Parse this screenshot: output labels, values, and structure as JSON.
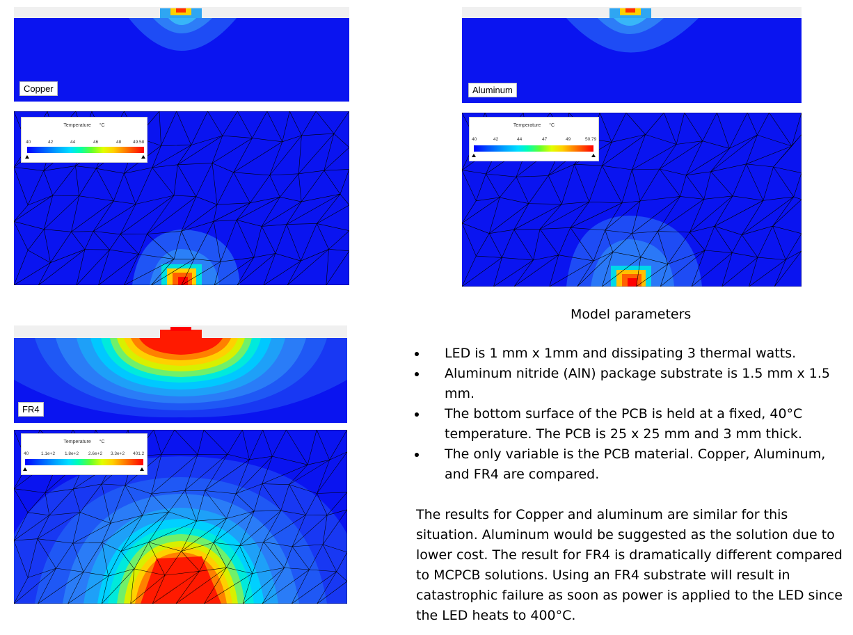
{
  "panels": {
    "copper": {
      "label": "Copper"
    },
    "aluminum": {
      "label": "Aluminum"
    },
    "fr4": {
      "label": "FR4"
    }
  },
  "legends": {
    "copper": {
      "title": "Temperature",
      "unit": "°C",
      "ticks": [
        "40",
        "42",
        "44",
        "46",
        "48",
        "49.58"
      ]
    },
    "aluminum": {
      "title": "Temperature",
      "unit": "°C",
      "ticks": [
        "40",
        "42",
        "44",
        "47",
        "49",
        "50.79"
      ]
    },
    "fr4": {
      "title": "Temperature",
      "unit": "°C",
      "ticks": [
        "40",
        "1.1e+2",
        "1.8e+2",
        "2.6e+2",
        "3.3e+2",
        "401.2"
      ]
    }
  },
  "text": {
    "heading": "Model parameters",
    "bullets": [
      "LED is 1 mm x 1mm and dissipating 3 thermal watts.",
      "Aluminum nitride (AlN) package substrate is 1.5 mm x 1.5 mm.",
      "The bottom surface of the PCB is held at a fixed, 40°C temperature.  The PCB is 25 x 25 mm and 3 mm thick.",
      "The only variable is the PCB material. Copper, Aluminum, and FR4 are compared."
    ],
    "summary": "The results for Copper and aluminum are similar for this situation. Aluminum would be suggested as the solution due to lower cost. The result for FR4 is dramatically different compared to MCPCB solutions.  Using an FR4 substrate will result in catastrophic failure as soon as power is applied to the LED since the LED heats to 400°C."
  },
  "colors": {
    "cold": "#0000ff",
    "warm": "#00a0ff",
    "hot": "#ff0000"
  }
}
